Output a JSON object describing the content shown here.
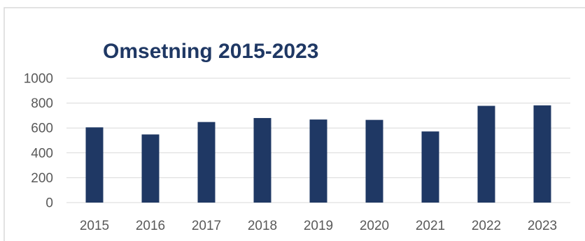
{
  "chart_data": {
    "type": "bar",
    "title": "Omsetning 2015-2023",
    "xlabel": "",
    "ylabel": "",
    "categories": [
      "2015",
      "2016",
      "2017",
      "2018",
      "2019",
      "2020",
      "2021",
      "2022",
      "2023"
    ],
    "series": [
      {
        "values": [
          605,
          548,
          648,
          680,
          668,
          665,
          572,
          778,
          782
        ]
      }
    ],
    "ylim": [
      0,
      1000
    ],
    "yticks": [
      "0",
      "200",
      "400",
      "600",
      "800",
      "1000"
    ],
    "yticks_values": [
      0,
      200,
      400,
      600,
      800,
      1000
    ],
    "grid": true,
    "legend": "none"
  },
  "colors": {
    "bar": "#1f3864",
    "title": "#1f3864",
    "grid": "#d9d9d9",
    "axis": "#d9d9d9",
    "tick_text": "#595959",
    "frame": "#d9d9d9"
  }
}
